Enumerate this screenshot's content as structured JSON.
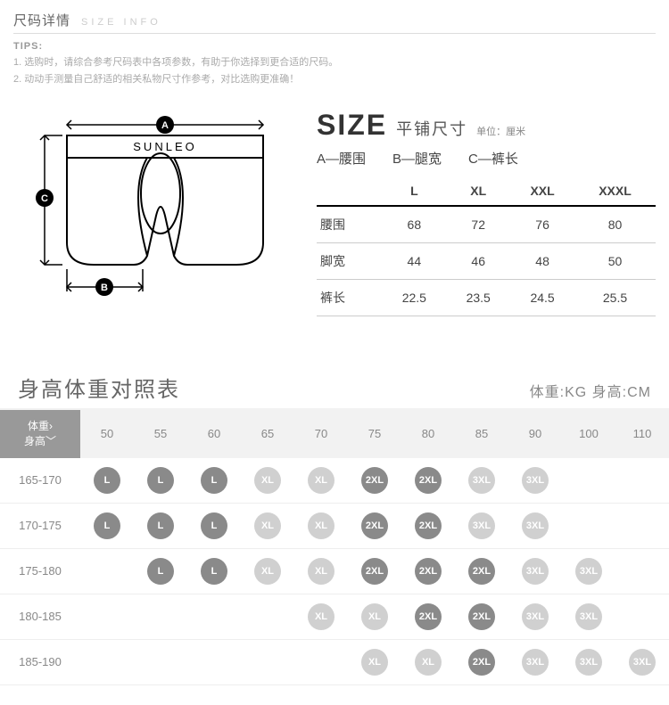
{
  "header": {
    "title_cn": "尺码详情",
    "title_en": "SIZE INFO",
    "tips_label": "TIPS:",
    "tips": [
      "1. 选购时，请综合参考尺码表中各项参数，有助于你选择到更合适的尺码。",
      "2. 动动手测量自己舒适的相关私物尺寸作参考，对比选购更准确！"
    ]
  },
  "diagram": {
    "brand": "SUNLEO",
    "markers": [
      "A",
      "B",
      "C"
    ]
  },
  "sizeBlock": {
    "big": "SIZE",
    "sub": "平铺尺寸",
    "unit": "单位：厘米",
    "labels": [
      "A—腰围",
      "B—腿宽",
      "C—裤长"
    ],
    "table": {
      "head": [
        "",
        "L",
        "XL",
        "XXL",
        "XXXL"
      ],
      "rows": [
        [
          "腰围",
          "68",
          "72",
          "76",
          "80"
        ],
        [
          "脚宽",
          "44",
          "46",
          "48",
          "50"
        ],
        [
          "裤长",
          "22.5",
          "23.5",
          "24.5",
          "25.5"
        ]
      ]
    }
  },
  "hwBlock": {
    "title": "身高体重对照表",
    "units": "体重:KG 身高:CM",
    "corner_l1": "体重›",
    "corner_l2": "身高﹀",
    "weights": [
      "50",
      "55",
      "60",
      "65",
      "70",
      "75",
      "80",
      "85",
      "90",
      "100",
      "110"
    ],
    "rows": [
      {
        "h": "165-170",
        "cells": [
          [
            "L",
            "d"
          ],
          [
            "L",
            "d"
          ],
          [
            "L",
            "d"
          ],
          [
            "XL",
            "l"
          ],
          [
            "XL",
            "l"
          ],
          [
            "2XL",
            "d"
          ],
          [
            "2XL",
            "d"
          ],
          [
            "3XL",
            "l"
          ],
          [
            "3XL",
            "l"
          ],
          null,
          null
        ]
      },
      {
        "h": "170-175",
        "cells": [
          [
            "L",
            "d"
          ],
          [
            "L",
            "d"
          ],
          [
            "L",
            "d"
          ],
          [
            "XL",
            "l"
          ],
          [
            "XL",
            "l"
          ],
          [
            "2XL",
            "d"
          ],
          [
            "2XL",
            "d"
          ],
          [
            "3XL",
            "l"
          ],
          [
            "3XL",
            "l"
          ],
          null,
          null
        ]
      },
      {
        "h": "175-180",
        "cells": [
          null,
          [
            "L",
            "d"
          ],
          [
            "L",
            "d"
          ],
          [
            "XL",
            "l"
          ],
          [
            "XL",
            "l"
          ],
          [
            "2XL",
            "d"
          ],
          [
            "2XL",
            "d"
          ],
          [
            "2XL",
            "d"
          ],
          [
            "3XL",
            "l"
          ],
          [
            "3XL",
            "l"
          ],
          null
        ]
      },
      {
        "h": "180-185",
        "cells": [
          null,
          null,
          null,
          null,
          [
            "XL",
            "l"
          ],
          [
            "XL",
            "l"
          ],
          [
            "2XL",
            "d"
          ],
          [
            "2XL",
            "d"
          ],
          [
            "3XL",
            "l"
          ],
          [
            "3XL",
            "l"
          ],
          null
        ]
      },
      {
        "h": "185-190",
        "cells": [
          null,
          null,
          null,
          null,
          null,
          [
            "XL",
            "l"
          ],
          [
            "XL",
            "l"
          ],
          [
            "2XL",
            "d"
          ],
          [
            "3XL",
            "l"
          ],
          [
            "3XL",
            "l"
          ],
          [
            "3XL",
            "l"
          ]
        ]
      }
    ]
  },
  "style": {
    "badge_dark": "#8a8a8a",
    "badge_light": "#d0d0d0",
    "bg_grey": "#f2f2f2"
  }
}
